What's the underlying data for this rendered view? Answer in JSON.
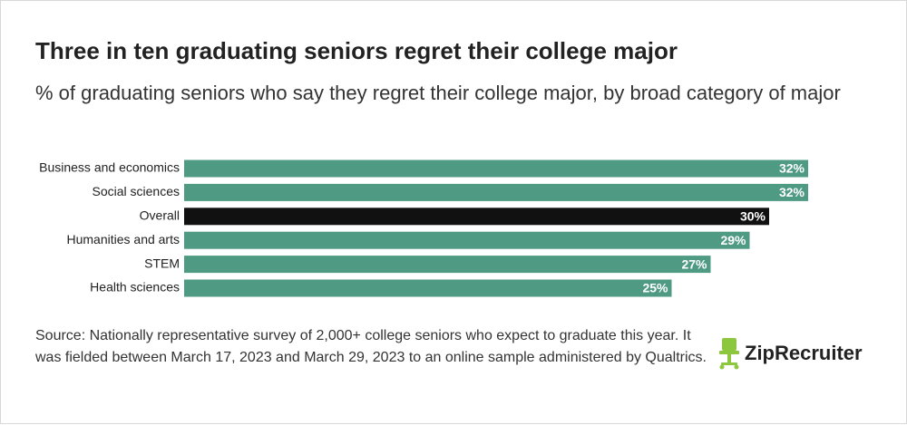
{
  "chart_data": {
    "type": "bar",
    "orientation": "horizontal",
    "title": "Three in ten graduating seniors regret their college major",
    "subtitle": "% of graduating seniors who say they regret their college major, by broad category of major",
    "categories": [
      "Business and economics",
      "Social sciences",
      "Overall",
      "Humanities and arts",
      "STEM",
      "Health sciences"
    ],
    "values": [
      32,
      32,
      30,
      29,
      27,
      25
    ],
    "value_labels": [
      "32%",
      "32%",
      "30%",
      "29%",
      "27%",
      "25%"
    ],
    "colors": [
      "#4e9a83",
      "#4e9a83",
      "#111111",
      "#4e9a83",
      "#4e9a83",
      "#4e9a83"
    ],
    "source": "Source: Nationally representative survey of 2,000+ college seniors who expect to graduate this year. It was fielded between March 17, 2023 and March 29, 2023 to an online sample administered by Qualtrics.",
    "logo": "ZipRecruiter"
  }
}
